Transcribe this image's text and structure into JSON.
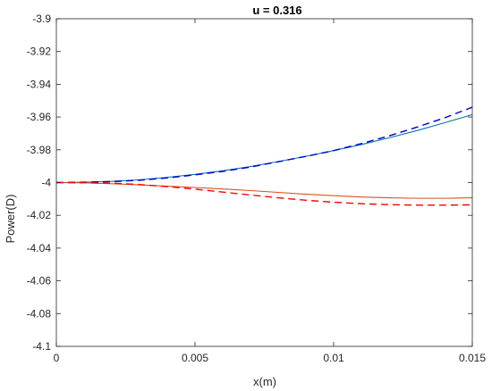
{
  "chart_data": {
    "type": "line",
    "title": "u = 0.316",
    "xlabel": "x(m)",
    "ylabel": "Power(D)",
    "xlim": [
      0,
      0.015
    ],
    "ylim": [
      -4.1,
      -3.9
    ],
    "xticks": [
      0,
      0.005,
      0.01,
      0.015
    ],
    "xtick_labels": [
      "0",
      "0.005",
      "0.01",
      "0.015"
    ],
    "yticks": [
      -4.1,
      -4.08,
      -4.06,
      -4.04,
      -4.02,
      -4,
      -3.98,
      -3.96,
      -3.94,
      -3.92,
      -3.9
    ],
    "ytick_labels": [
      "-4.1",
      "-4.08",
      "-4.06",
      "-4.04",
      "-4.02",
      "-4",
      "-3.98",
      "-3.96",
      "-3.94",
      "-3.92",
      "-3.9"
    ],
    "grid": false,
    "legend": false,
    "series": [
      {
        "color": "#0072BD",
        "style": "solid",
        "x": [
          0,
          0.001,
          0.002,
          0.003,
          0.004,
          0.005,
          0.006,
          0.007,
          0.008,
          0.009,
          0.01,
          0.011,
          0.012,
          0.013,
          0.014,
          0.015
        ],
        "y": [
          -4.0,
          -3.9998,
          -3.9993,
          -3.9983,
          -3.9968,
          -3.995,
          -3.9928,
          -3.9902,
          -3.9872,
          -3.984,
          -3.9805,
          -3.9768,
          -3.9727,
          -3.9683,
          -3.9635,
          -3.9585
        ]
      },
      {
        "color": "#0000CC",
        "style": "dashed",
        "x": [
          0,
          0.001,
          0.002,
          0.003,
          0.004,
          0.005,
          0.006,
          0.007,
          0.008,
          0.009,
          0.01,
          0.011,
          0.012,
          0.013,
          0.014,
          0.015
        ],
        "y": [
          -4.0,
          -3.9998,
          -3.9994,
          -3.9986,
          -3.9972,
          -3.9953,
          -3.9932,
          -3.9905,
          -3.9873,
          -3.984,
          -3.9805,
          -3.9762,
          -3.9715,
          -3.9662,
          -3.9605,
          -3.954
        ]
      },
      {
        "color": "#D95319",
        "style": "solid",
        "x": [
          0,
          0.001,
          0.002,
          0.003,
          0.004,
          0.005,
          0.006,
          0.007,
          0.008,
          0.009,
          0.01,
          0.011,
          0.012,
          0.013,
          0.014,
          0.015
        ],
        "y": [
          -4.0,
          -4.0002,
          -4.0007,
          -4.0014,
          -4.0022,
          -4.003,
          -4.0039,
          -4.0049,
          -4.006,
          -4.0071,
          -4.008,
          -4.0088,
          -4.0093,
          -4.0096,
          -4.0096,
          -4.0093
        ]
      },
      {
        "color": "#FF0000",
        "style": "dashed",
        "x": [
          0,
          0.001,
          0.002,
          0.003,
          0.004,
          0.005,
          0.006,
          0.007,
          0.008,
          0.009,
          0.01,
          0.011,
          0.012,
          0.013,
          0.014,
          0.015
        ],
        "y": [
          -4.0,
          -4.0001,
          -4.0004,
          -4.0012,
          -4.0025,
          -4.004,
          -4.0058,
          -4.0076,
          -4.0093,
          -4.0108,
          -4.012,
          -4.0129,
          -4.0135,
          -4.0138,
          -4.0138,
          -4.0136
        ]
      }
    ]
  }
}
